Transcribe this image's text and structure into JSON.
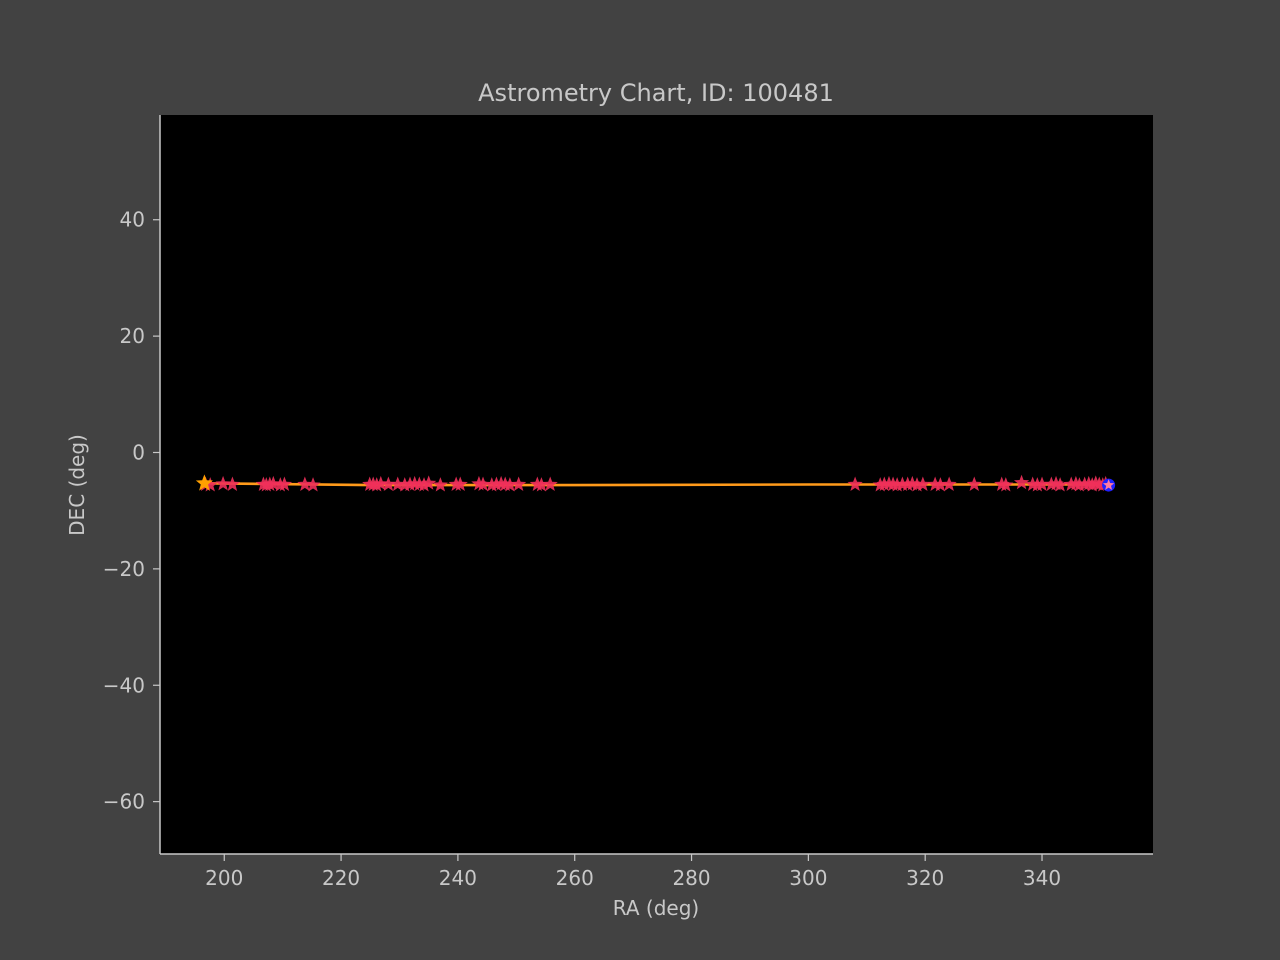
{
  "chart_data": {
    "type": "scatter",
    "title": "Astrometry Chart, ID: 100481",
    "xlabel": "RA (deg)",
    "ylabel": "DEC (deg)",
    "xlim": [
      189,
      359
    ],
    "ylim": [
      -69,
      58
    ],
    "x_ticks": [
      200,
      220,
      240,
      260,
      280,
      300,
      320,
      340
    ],
    "y_ticks": [
      40,
      20,
      0,
      -20,
      -40,
      -60
    ],
    "x_tick_labels": [
      "200",
      "220",
      "240",
      "260",
      "280",
      "300",
      "320",
      "340"
    ],
    "y_tick_labels": [
      "40",
      "20",
      "0",
      "−20",
      "−40",
      "−60"
    ],
    "grid": false,
    "colors": {
      "figure_bg": "#424242",
      "plot_bg": "#000000",
      "axis": "#c8c8c8",
      "observations": "#f0305a",
      "fit_line": "#ff9a1a",
      "start_marker": "#ffa000",
      "end_marker": "#2020ff"
    },
    "series": [
      {
        "name": "observations",
        "marker": "star",
        "points": [
          [
            196.8,
            -5.5
          ],
          [
            197.6,
            -5.6
          ],
          [
            199.8,
            -5.4
          ],
          [
            201.4,
            -5.5
          ],
          [
            206.7,
            -5.5
          ],
          [
            207.2,
            -5.6
          ],
          [
            207.8,
            -5.5
          ],
          [
            208.4,
            -5.4
          ],
          [
            209.6,
            -5.6
          ],
          [
            210.3,
            -5.5
          ],
          [
            213.8,
            -5.5
          ],
          [
            215.2,
            -5.6
          ],
          [
            224.9,
            -5.5
          ],
          [
            225.5,
            -5.5
          ],
          [
            226.1,
            -5.6
          ],
          [
            226.8,
            -5.4
          ],
          [
            228.1,
            -5.5
          ],
          [
            229.7,
            -5.5
          ],
          [
            230.9,
            -5.6
          ],
          [
            231.8,
            -5.5
          ],
          [
            232.6,
            -5.4
          ],
          [
            233.4,
            -5.5
          ],
          [
            234.2,
            -5.6
          ],
          [
            235.0,
            -5.3
          ],
          [
            237.0,
            -5.6
          ],
          [
            239.7,
            -5.5
          ],
          [
            240.4,
            -5.5
          ],
          [
            243.6,
            -5.4
          ],
          [
            244.3,
            -5.5
          ],
          [
            245.8,
            -5.6
          ],
          [
            246.6,
            -5.5
          ],
          [
            247.4,
            -5.4
          ],
          [
            248.1,
            -5.5
          ],
          [
            248.9,
            -5.6
          ],
          [
            250.4,
            -5.5
          ],
          [
            253.6,
            -5.5
          ],
          [
            254.3,
            -5.6
          ],
          [
            255.8,
            -5.5
          ],
          [
            308.0,
            -5.5
          ],
          [
            312.3,
            -5.6
          ],
          [
            313.0,
            -5.5
          ],
          [
            313.8,
            -5.4
          ],
          [
            314.5,
            -5.5
          ],
          [
            315.2,
            -5.6
          ],
          [
            316.1,
            -5.5
          ],
          [
            317.0,
            -5.5
          ],
          [
            317.8,
            -5.4
          ],
          [
            318.6,
            -5.6
          ],
          [
            319.6,
            -5.5
          ],
          [
            321.7,
            -5.5
          ],
          [
            322.6,
            -5.6
          ],
          [
            324.1,
            -5.5
          ],
          [
            328.4,
            -5.5
          ],
          [
            333.1,
            -5.5
          ],
          [
            333.8,
            -5.6
          ],
          [
            336.5,
            -5.2
          ],
          [
            338.4,
            -5.5
          ],
          [
            339.2,
            -5.6
          ],
          [
            340.0,
            -5.5
          ],
          [
            341.6,
            -5.5
          ],
          [
            342.4,
            -5.4
          ],
          [
            343.1,
            -5.6
          ],
          [
            345.0,
            -5.5
          ],
          [
            345.8,
            -5.4
          ],
          [
            346.4,
            -5.6
          ],
          [
            347.3,
            -5.5
          ],
          [
            348.0,
            -5.4
          ],
          [
            348.6,
            -5.6
          ],
          [
            349.2,
            -5.3
          ],
          [
            349.8,
            -5.5
          ],
          [
            350.4,
            -5.6
          ],
          [
            350.9,
            -5.4
          ]
        ]
      },
      {
        "name": "fit",
        "line": true,
        "points": [
          [
            196.5,
            -5.3
          ],
          [
            225,
            -5.6
          ],
          [
            260,
            -5.6
          ],
          [
            300,
            -5.5
          ],
          [
            330,
            -5.5
          ],
          [
            351.5,
            -5.5
          ]
        ]
      },
      {
        "name": "start",
        "marker": "star",
        "points": [
          [
            196.6,
            -5.3
          ]
        ]
      },
      {
        "name": "end",
        "marker": "circle",
        "points": [
          [
            351.4,
            -5.6
          ]
        ]
      }
    ]
  }
}
